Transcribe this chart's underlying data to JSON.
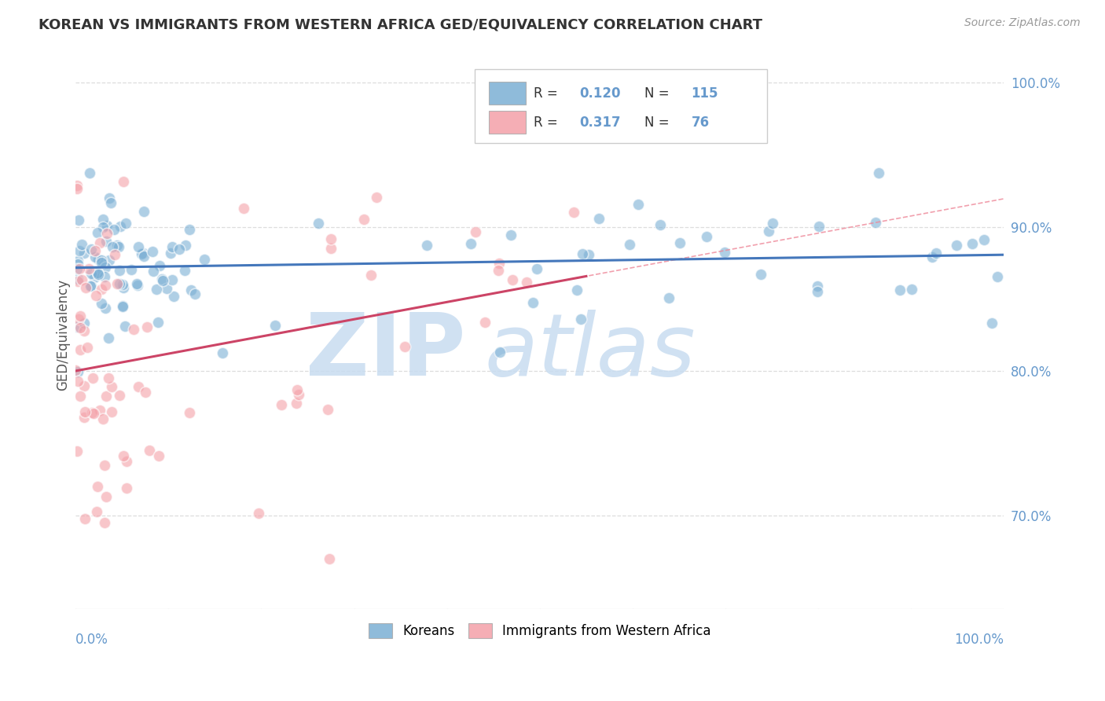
{
  "title": "KOREAN VS IMMIGRANTS FROM WESTERN AFRICA GED/EQUIVALENCY CORRELATION CHART",
  "source": "Source: ZipAtlas.com",
  "ylabel": "GED/Equivalency",
  "xlim": [
    0.0,
    1.0
  ],
  "ylim": [
    0.635,
    1.015
  ],
  "yticks": [
    0.7,
    0.8,
    0.9,
    1.0
  ],
  "ytick_labels": [
    "70.0%",
    "80.0%",
    "90.0%",
    "100.0%"
  ],
  "xticks": [
    0.0,
    1.0
  ],
  "xtick_labels_left": "0.0%",
  "xtick_labels_right": "100.0%",
  "korean_R": 0.12,
  "korean_N": 115,
  "africa_R": 0.317,
  "africa_N": 76,
  "blue_dot_color": "#7BAFD4",
  "pink_dot_color": "#F4A0A8",
  "blue_line_color": "#4477BB",
  "pink_line_color": "#CC4466",
  "pink_dash_color": "#EE8899",
  "grid_color": "#DDDDDD",
  "tick_color": "#6699CC",
  "title_color": "#333333",
  "source_color": "#999999",
  "watermark_zip_color": "#C8DCF0",
  "watermark_atlas_color": "#C8DCF0",
  "legend_border_color": "#CCCCCC"
}
